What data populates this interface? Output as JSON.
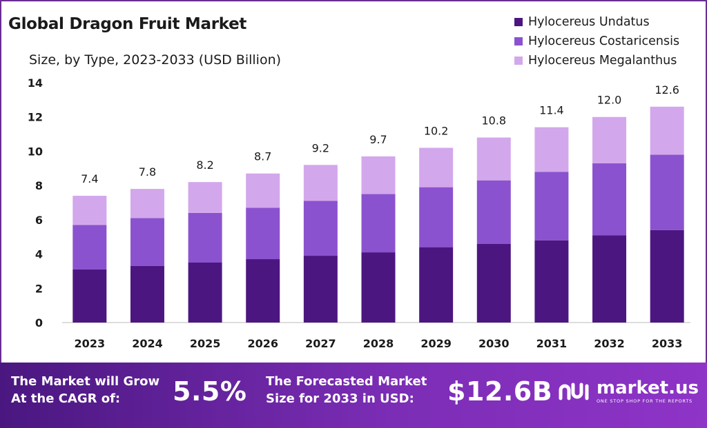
{
  "header": {
    "title": "Global Dragon Fruit Market",
    "subtitle": "Size, by Type, 2023-2033 (USD Billion)"
  },
  "legend": [
    {
      "label": "Hylocereus Undatus",
      "color": "#4c1680"
    },
    {
      "label": "Hylocereus Costaricensis",
      "color": "#8b52cf"
    },
    {
      "label": "Hylocereus Megalanthus",
      "color": "#d3a7ec"
    }
  ],
  "chart_data": {
    "type": "bar",
    "stacked": true,
    "categories": [
      "2023",
      "2024",
      "2025",
      "2026",
      "2027",
      "2028",
      "2029",
      "2030",
      "2031",
      "2032",
      "2033"
    ],
    "series": [
      {
        "name": "Hylocereus Undatus",
        "color": "#4c1680",
        "values": [
          3.1,
          3.3,
          3.5,
          3.7,
          3.9,
          4.1,
          4.4,
          4.6,
          4.8,
          5.1,
          5.4
        ]
      },
      {
        "name": "Hylocereus Costaricensis",
        "color": "#8b52cf",
        "values": [
          2.6,
          2.8,
          2.9,
          3.0,
          3.2,
          3.4,
          3.5,
          3.7,
          4.0,
          4.2,
          4.4
        ]
      },
      {
        "name": "Hylocereus Megalanthus",
        "color": "#d3a7ec",
        "values": [
          1.7,
          1.7,
          1.8,
          2.0,
          2.1,
          2.2,
          2.3,
          2.5,
          2.6,
          2.7,
          2.8
        ]
      }
    ],
    "totals": [
      "7.4",
      "7.8",
      "8.2",
      "8.7",
      "9.2",
      "9.7",
      "10.2",
      "10.8",
      "11.4",
      "12.0",
      "12.6"
    ],
    "ylim": [
      0,
      14
    ],
    "yticks": [
      0,
      2,
      4,
      6,
      8,
      10,
      12,
      14
    ],
    "grid": false,
    "legend_position": "top-right"
  },
  "footer": {
    "cagr_text_1": "The Market will Grow",
    "cagr_text_2": "At the CAGR of:",
    "cagr_value": "5.5%",
    "forecast_text_1": "The Forecasted Market",
    "forecast_text_2": "Size for 2033 in USD:",
    "forecast_value": "$12.6B",
    "brand": "market.us",
    "tagline": "ONE STOP SHOP FOR THE REPORTS"
  }
}
